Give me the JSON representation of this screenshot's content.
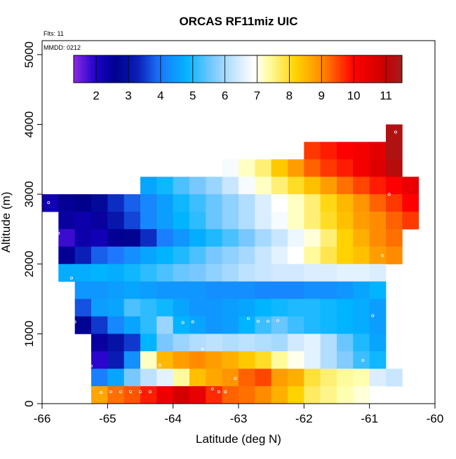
{
  "chart_data": {
    "type": "heatmap",
    "title": "ORCAS RF11miz UIC",
    "xlabel": "Latitude (deg N)",
    "ylabel": "Altitude (m)",
    "xlim": [
      -66,
      -60
    ],
    "ylim": [
      0,
      5200
    ],
    "x_ticks": [
      -66,
      -65,
      -64,
      -63,
      -62,
      -61,
      -60
    ],
    "x_tick_labels": [
      "-66",
      "-65",
      "-64",
      "-63",
      "-62",
      "-61",
      "-60"
    ],
    "y_ticks": [
      0,
      1000,
      2000,
      3000,
      4000,
      5000
    ],
    "y_tick_labels": [
      "0",
      "1000",
      "2000",
      "3000",
      "4000",
      "5000"
    ],
    "grid": false,
    "annotations": [
      "Flts: 11",
      "MMDD: 0212"
    ],
    "colorbar": {
      "range": [
        1.3,
        11.5
      ],
      "ticks": [
        2,
        3,
        4,
        5,
        6,
        7,
        8,
        9,
        10,
        11
      ],
      "tick_labels": [
        "2",
        "3",
        "4",
        "5",
        "6",
        "7",
        "8",
        "9",
        "10",
        "11"
      ],
      "placement": "top inset"
    },
    "bin_edges": {
      "lat_start": -66.0,
      "lat_step": 0.25,
      "alt_start": 0,
      "alt_step": 250
    },
    "cells_note": "each row: altitude bin [alt_low, alt_high] in m, first latitude bin start, values (UIC) for consecutive 0.25-deg bins",
    "cells": [
      {
        "alt": [
          3750,
          4000
        ],
        "lat0": -60.75,
        "values": [
          11.3
        ]
      },
      {
        "alt": [
          3500,
          3750
        ],
        "lat0": -62.0,
        "values": [
          9.6,
          9.8,
          10.0,
          10.2,
          10.5,
          11.3
        ]
      },
      {
        "alt": [
          3250,
          3500
        ],
        "lat0": -63.25,
        "values": [
          6.8,
          7.2,
          7.6,
          8.3,
          8.8,
          9.3,
          9.6,
          9.8,
          10.2,
          10.6,
          11.2
        ]
      },
      {
        "alt": [
          3000,
          3250
        ],
        "lat0": -64.5,
        "values": [
          4.6,
          4.9,
          5.3,
          5.6,
          5.9,
          6.3,
          6.8,
          7.2,
          7.6,
          8.0,
          8.4,
          8.8,
          9.2,
          9.5,
          9.8,
          10.0,
          10.4
        ]
      },
      {
        "alt": [
          2750,
          3000
        ],
        "lat0": -66.0,
        "values": [
          2.2,
          2.5,
          2.6,
          2.8,
          3.4,
          3.8,
          4.2,
          4.5,
          4.9,
          5.2,
          5.5,
          5.8,
          6.1,
          6.5,
          6.9,
          7.2,
          7.6,
          8.1,
          8.5,
          8.9,
          9.3,
          9.6,
          10.0
        ]
      },
      {
        "alt": [
          2500,
          2750
        ],
        "lat0": -65.75,
        "values": [
          2.4,
          2.3,
          2.4,
          3.1,
          3.6,
          4.2,
          4.5,
          4.8,
          5.1,
          5.5,
          5.8,
          6.1,
          6.5,
          6.8,
          7.2,
          7.6,
          8.0,
          8.4,
          8.8,
          9.0,
          9.3,
          9.6
        ]
      },
      {
        "alt": [
          2250,
          2500
        ],
        "lat0": -65.75,
        "values": [
          1.8,
          2.3,
          2.2,
          2.5,
          2.7,
          3.4,
          4.1,
          4.4,
          4.7,
          5.0,
          5.3,
          5.6,
          6.0,
          6.3,
          6.7,
          7.1,
          7.6,
          8.2,
          8.6,
          9.0,
          9.2
        ]
      },
      {
        "alt": [
          2000,
          2250
        ],
        "lat0": -65.75,
        "values": [
          2.5,
          3.3,
          3.8,
          4.0,
          4.3,
          4.6,
          4.8,
          5.0,
          5.3,
          5.6,
          5.8,
          6.0,
          6.3,
          6.6,
          6.9,
          7.4,
          7.8,
          8.2,
          8.4,
          8.8,
          9.0
        ]
      },
      {
        "alt": [
          1750,
          2000
        ],
        "lat0": -65.75,
        "values": [
          4.7,
          4.7,
          4.8,
          4.7,
          4.9,
          5.1,
          5.3,
          5.5,
          5.6,
          5.8,
          6.0,
          6.2,
          6.3,
          6.4,
          6.4,
          6.5,
          6.5,
          6.6,
          6.6,
          6.5
        ]
      },
      {
        "alt": [
          1500,
          1750
        ],
        "lat0": -65.5,
        "values": [
          4.4,
          4.4,
          4.5,
          4.6,
          4.5,
          4.4,
          4.4,
          4.4,
          4.3,
          4.3,
          4.3,
          4.2,
          4.2,
          4.2,
          4.3,
          4.3,
          4.4,
          4.6,
          4.8
        ]
      },
      {
        "alt": [
          1250,
          1500
        ],
        "lat0": -65.5,
        "values": [
          3.7,
          4.5,
          4.6,
          5.3,
          5.1,
          4.9,
          4.6,
          4.4,
          4.4,
          4.5,
          4.6,
          4.8,
          4.9,
          5.0,
          5.0,
          4.9,
          4.8,
          4.7,
          4.5
        ]
      },
      {
        "alt": [
          1000,
          1250
        ],
        "lat0": -65.5,
        "values": [
          2.7,
          3.5,
          4.2,
          4.6,
          5.1,
          5.9,
          4.8,
          4.6,
          4.4,
          4.5,
          4.8,
          5.2,
          5.5,
          5.2,
          5.0,
          4.9,
          4.8,
          4.7,
          4.5
        ]
      },
      {
        "alt": [
          750,
          1000
        ],
        "lat0": -65.25,
        "values": [
          2.4,
          3.0,
          3.5,
          4.8,
          5.6,
          5.9,
          6.1,
          6.2,
          6.1,
          6.2,
          6.1,
          6.0,
          6.4,
          6.6,
          6.1,
          5.5,
          5.0,
          4.6
        ]
      },
      {
        "alt": [
          500,
          750
        ],
        "lat0": -65.25,
        "values": [
          1.9,
          3.2,
          4.3,
          7.2,
          8.5,
          8.8,
          9.0,
          8.8,
          8.6,
          8.3,
          8.0,
          7.4,
          7.0,
          6.6,
          6.1,
          5.7,
          5.2,
          4.9
        ]
      },
      {
        "alt": [
          250,
          500
        ],
        "lat0": -65.25,
        "values": [
          4.1,
          4.6,
          5.6,
          6.2,
          6.6,
          7.4,
          8.4,
          8.7,
          8.9,
          9.3,
          9.5,
          8.8,
          8.6,
          7.9,
          7.6,
          7.4,
          7.3,
          6.5,
          6.3
        ]
      },
      {
        "alt": [
          0,
          250
        ],
        "lat0": -65.25,
        "values": [
          8.7,
          9.2,
          9.4,
          9.8,
          10.3,
          10.8,
          10.4,
          9.7,
          9.3,
          9.2,
          9.0,
          8.6,
          8.2,
          7.7,
          7.5,
          7.3,
          7.1,
          6.9
        ]
      }
    ],
    "flight_track_points": [
      [
        -65.9,
        2880
      ],
      [
        -65.75,
        2440
      ],
      [
        -65.55,
        1800
      ],
      [
        -65.5,
        1170
      ],
      [
        -65.25,
        540
      ],
      [
        -65.1,
        160
      ],
      [
        -64.95,
        170
      ],
      [
        -64.8,
        170
      ],
      [
        -64.65,
        170
      ],
      [
        -64.5,
        170
      ],
      [
        -64.35,
        170
      ],
      [
        -64.2,
        550
      ],
      [
        -63.85,
        1160
      ],
      [
        -63.7,
        1170
      ],
      [
        -63.55,
        780
      ],
      [
        -63.4,
        210
      ],
      [
        -63.3,
        170
      ],
      [
        -63.2,
        170
      ],
      [
        -63.05,
        360
      ],
      [
        -62.85,
        1220
      ],
      [
        -62.7,
        1180
      ],
      [
        -62.55,
        1180
      ],
      [
        -62.4,
        1190
      ],
      [
        -61.1,
        620
      ],
      [
        -60.95,
        1260
      ],
      [
        -60.8,
        2120
      ],
      [
        -60.7,
        3000
      ],
      [
        -60.6,
        3890
      ]
    ]
  }
}
